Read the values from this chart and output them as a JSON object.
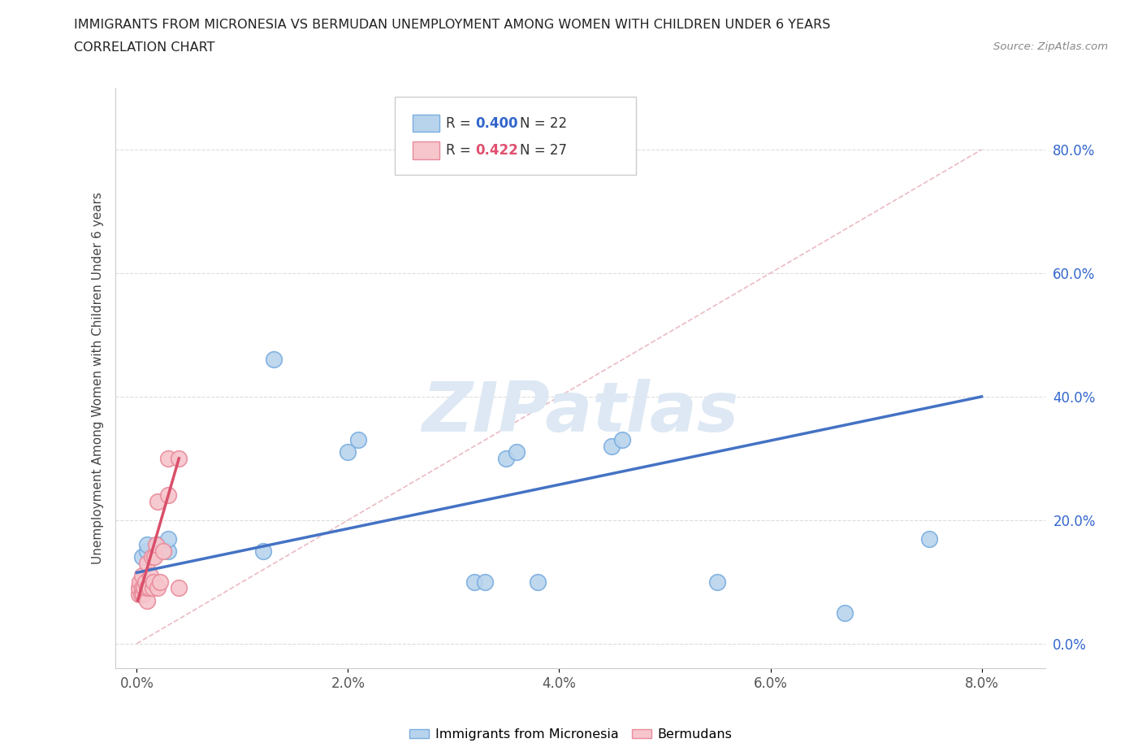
{
  "title_line1": "IMMIGRANTS FROM MICRONESIA VS BERMUDAN UNEMPLOYMENT AMONG WOMEN WITH CHILDREN UNDER 6 YEARS",
  "title_line2": "CORRELATION CHART",
  "source": "Source: ZipAtlas.com",
  "ylabel": "Unemployment Among Women with Children Under 6 years",
  "x_tick_labels": [
    "0.0%",
    "2.0%",
    "4.0%",
    "6.0%",
    "8.0%"
  ],
  "x_tick_vals": [
    0.0,
    0.02,
    0.04,
    0.06,
    0.08
  ],
  "y_tick_labels": [
    "0.0%",
    "20.0%",
    "40.0%",
    "60.0%",
    "80.0%"
  ],
  "y_tick_vals": [
    0.0,
    0.2,
    0.4,
    0.6,
    0.8
  ],
  "xlim": [
    -0.002,
    0.086
  ],
  "ylim": [
    -0.04,
    0.9
  ],
  "legend_r_blue": "R = 0.400",
  "legend_n_blue": "N = 22",
  "legend_r_pink": "R = 0.422",
  "legend_n_pink": "N = 27",
  "blue_scatter_x": [
    0.0005,
    0.001,
    0.001,
    0.0015,
    0.002,
    0.002,
    0.003,
    0.003,
    0.012,
    0.013,
    0.02,
    0.021,
    0.032,
    0.033,
    0.035,
    0.036,
    0.038,
    0.045,
    0.046,
    0.055,
    0.067,
    0.075
  ],
  "blue_scatter_y": [
    0.14,
    0.15,
    0.16,
    0.14,
    0.15,
    0.16,
    0.15,
    0.17,
    0.15,
    0.46,
    0.31,
    0.33,
    0.1,
    0.1,
    0.3,
    0.31,
    0.1,
    0.32,
    0.33,
    0.1,
    0.05,
    0.17
  ],
  "pink_scatter_x": [
    0.0002,
    0.0002,
    0.0003,
    0.0004,
    0.0005,
    0.0005,
    0.0006,
    0.0007,
    0.0008,
    0.001,
    0.001,
    0.001,
    0.0012,
    0.0013,
    0.0014,
    0.0015,
    0.0016,
    0.0017,
    0.0018,
    0.002,
    0.002,
    0.0022,
    0.0025,
    0.003,
    0.003,
    0.004,
    0.004
  ],
  "pink_scatter_y": [
    0.08,
    0.09,
    0.1,
    0.08,
    0.09,
    0.11,
    0.08,
    0.09,
    0.1,
    0.07,
    0.09,
    0.13,
    0.09,
    0.11,
    0.14,
    0.09,
    0.1,
    0.14,
    0.16,
    0.09,
    0.23,
    0.1,
    0.15,
    0.24,
    0.3,
    0.09,
    0.3
  ],
  "blue_line_x": [
    0.0,
    0.08
  ],
  "blue_line_y": [
    0.115,
    0.4
  ],
  "pink_line_x": [
    0.0001,
    0.004
  ],
  "pink_line_y": [
    0.07,
    0.3
  ],
  "diag_line_x": [
    0.0,
    0.08
  ],
  "diag_line_y": [
    0.0,
    0.8
  ],
  "blue_color": "#b8d4ed",
  "blue_edge_color": "#7aade0",
  "blue_line_color": "#4472c4",
  "pink_color": "#f7c5cc",
  "pink_edge_color": "#e88a9a",
  "pink_line_color": "#d94f6a",
  "diag_color": "#e8b4bc",
  "watermark": "ZIPatlas",
  "watermark_color": "#dde8f4",
  "scatter_size": 200,
  "legend_label_blue": "Immigrants from Micronesia",
  "legend_label_pink": "Bermudans"
}
